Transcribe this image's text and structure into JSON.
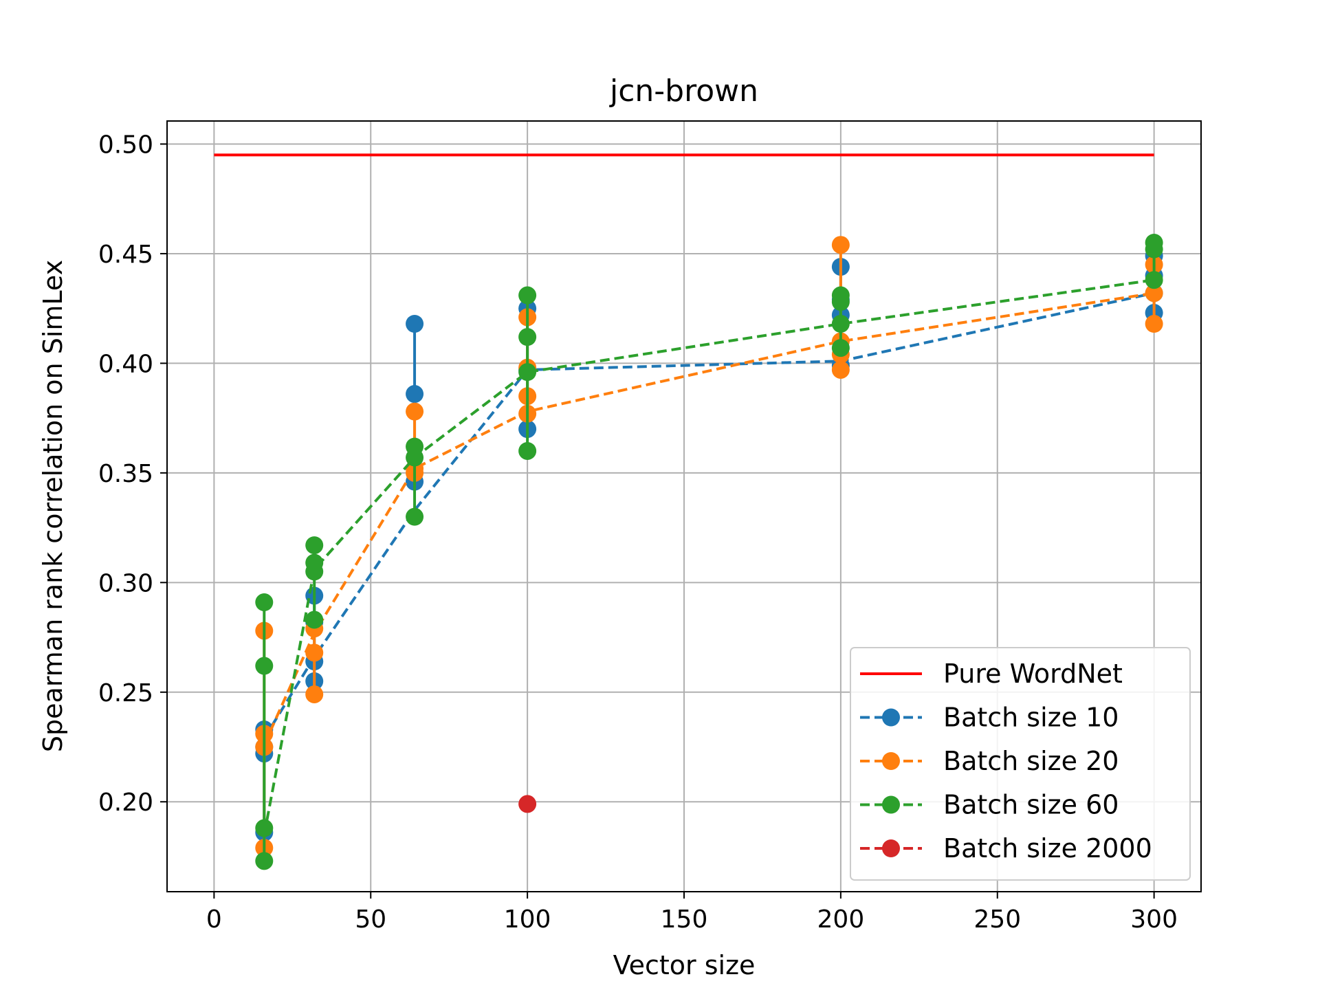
{
  "chart_data": {
    "type": "line",
    "title": "jcn-brown",
    "xlabel": "Vector size",
    "ylabel": "Spearman rank correlation on SimLex",
    "xlim": [
      -15,
      315
    ],
    "ylim": [
      0.159,
      0.5105
    ],
    "xticks": [
      0,
      50,
      100,
      150,
      200,
      250,
      300
    ],
    "yticks": [
      0.2,
      0.25,
      0.3,
      0.35,
      0.4,
      0.45,
      0.5
    ],
    "ytick_labels": [
      "0.20",
      "0.25",
      "0.30",
      "0.35",
      "0.40",
      "0.45",
      "0.50"
    ],
    "grid": true,
    "legend_position": "lower-right",
    "series": [
      {
        "name": "Pure WordNet",
        "color": "#ff0000",
        "style": "solid",
        "x": [
          0,
          300
        ],
        "y": [
          0.495,
          0.495
        ]
      },
      {
        "name": "Batch size 10",
        "color": "#1f77b4",
        "style": "dashed",
        "marker": true,
        "x": [
          16,
          32,
          64,
          100,
          200,
          300
        ],
        "mean": [
          0.229,
          0.266,
          0.333,
          0.397,
          0.401,
          0.432
        ],
        "points": [
          [
            16,
            0.186
          ],
          [
            16,
            0.222
          ],
          [
            16,
            0.225
          ],
          [
            16,
            0.233
          ],
          [
            32,
            0.255
          ],
          [
            32,
            0.264
          ],
          [
            32,
            0.282
          ],
          [
            32,
            0.294
          ],
          [
            64,
            0.346
          ],
          [
            64,
            0.386
          ],
          [
            64,
            0.418
          ],
          [
            100,
            0.37
          ],
          [
            100,
            0.397
          ],
          [
            100,
            0.425
          ],
          [
            200,
            0.399
          ],
          [
            200,
            0.422
          ],
          [
            200,
            0.429
          ],
          [
            200,
            0.444
          ],
          [
            300,
            0.423
          ],
          [
            300,
            0.432
          ],
          [
            300,
            0.44
          ],
          [
            300,
            0.449
          ]
        ]
      },
      {
        "name": "Batch size 20",
        "color": "#ff7f0e",
        "style": "dashed",
        "marker": true,
        "x": [
          16,
          32,
          64,
          100,
          200,
          300
        ],
        "mean": [
          0.226,
          0.277,
          0.352,
          0.378,
          0.41,
          0.432
        ],
        "points": [
          [
            16,
            0.179
          ],
          [
            16,
            0.225
          ],
          [
            16,
            0.231
          ],
          [
            16,
            0.278
          ],
          [
            32,
            0.249
          ],
          [
            32,
            0.268
          ],
          [
            32,
            0.279
          ],
          [
            64,
            0.35
          ],
          [
            64,
            0.352
          ],
          [
            64,
            0.378
          ],
          [
            100,
            0.377
          ],
          [
            100,
            0.385
          ],
          [
            100,
            0.398
          ],
          [
            100,
            0.421
          ],
          [
            200,
            0.397
          ],
          [
            200,
            0.404
          ],
          [
            200,
            0.41
          ],
          [
            200,
            0.454
          ],
          [
            300,
            0.418
          ],
          [
            300,
            0.432
          ],
          [
            300,
            0.445
          ]
        ]
      },
      {
        "name": "Batch size 60",
        "color": "#2ca02c",
        "style": "dashed",
        "marker": true,
        "x": [
          16,
          32,
          64,
          100,
          200,
          300
        ],
        "mean": [
          0.185,
          0.306,
          0.357,
          0.396,
          0.418,
          0.438
        ],
        "points": [
          [
            16,
            0.173
          ],
          [
            16,
            0.188
          ],
          [
            16,
            0.262
          ],
          [
            16,
            0.291
          ],
          [
            32,
            0.283
          ],
          [
            32,
            0.305
          ],
          [
            32,
            0.309
          ],
          [
            32,
            0.317
          ],
          [
            64,
            0.33
          ],
          [
            64,
            0.357
          ],
          [
            64,
            0.362
          ],
          [
            100,
            0.36
          ],
          [
            100,
            0.396
          ],
          [
            100,
            0.412
          ],
          [
            100,
            0.431
          ],
          [
            200,
            0.407
          ],
          [
            200,
            0.418
          ],
          [
            200,
            0.428
          ],
          [
            200,
            0.431
          ],
          [
            300,
            0.438
          ],
          [
            300,
            0.452
          ],
          [
            300,
            0.455
          ]
        ]
      },
      {
        "name": "Batch size 2000",
        "color": "#d62728",
        "style": "dashed",
        "marker": true,
        "x": [
          100
        ],
        "mean": [
          0.199
        ],
        "points": [
          [
            100,
            0.199
          ]
        ]
      }
    ]
  }
}
